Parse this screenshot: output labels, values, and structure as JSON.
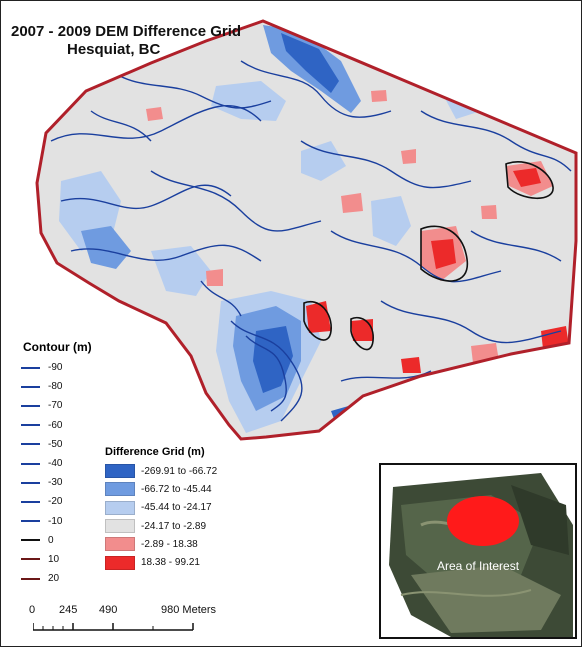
{
  "title": {
    "line1": "2007 - 2009 DEM Difference Grid",
    "line2": "Hesquiat, BC"
  },
  "contour_legend": {
    "title": "Contour (m)",
    "items": [
      {
        "label": "-90",
        "color": "#1a3f9e"
      },
      {
        "label": "-80",
        "color": "#1a3f9e"
      },
      {
        "label": "-70",
        "color": "#1a3f9e"
      },
      {
        "label": "-60",
        "color": "#1a3f9e"
      },
      {
        "label": "-50",
        "color": "#1a3f9e"
      },
      {
        "label": "-40",
        "color": "#1a3f9e"
      },
      {
        "label": "-30",
        "color": "#1a3f9e"
      },
      {
        "label": "-20",
        "color": "#1a3f9e"
      },
      {
        "label": "-10",
        "color": "#1a3f9e"
      },
      {
        "label": "0",
        "color": "#111111"
      },
      {
        "label": "10",
        "color": "#6b1818"
      },
      {
        "label": "20",
        "color": "#6b1818"
      }
    ]
  },
  "difference_legend": {
    "title": "Difference Grid (m)",
    "items": [
      {
        "label": "-269.91 to -66.72",
        "color": "#2f64c4"
      },
      {
        "label": "-66.72 to -45.44",
        "color": "#6f9be0"
      },
      {
        "label": "-45.44 to -24.17",
        "color": "#b6cdef"
      },
      {
        "label": "-24.17 to -2.89",
        "color": "#e2e2e2"
      },
      {
        "label": "-2.89 - 18.38",
        "color": "#f28d8d"
      },
      {
        "label": "18.38 - 99.21",
        "color": "#ec2a2a"
      }
    ]
  },
  "scale_bar": {
    "labels": [
      "0",
      "245",
      "490",
      "980 Meters"
    ]
  },
  "inset": {
    "label": "Area of Interest"
  },
  "colors": {
    "boundary": "#b0202a",
    "contour_blue": "#1a3f9e",
    "background_grey": "#e2e2e2"
  }
}
